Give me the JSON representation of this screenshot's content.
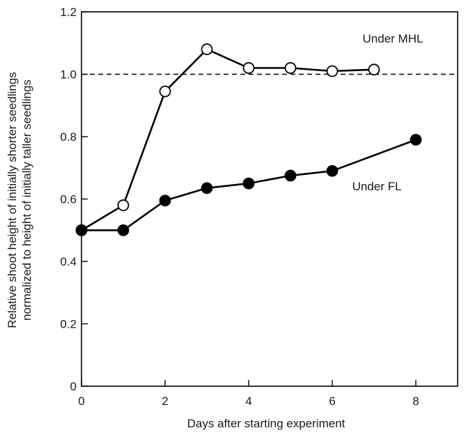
{
  "chart_data": {
    "type": "line",
    "title": "",
    "xlabel": "Days after starting experiment",
    "ylabel_lines": [
      "Relative shoot height of initially shorter seedlings",
      "normalized to height of initially taller seedlings"
    ],
    "xlim": [
      0,
      9
    ],
    "ylim": [
      0,
      1.2
    ],
    "xticks": [
      0,
      2,
      4,
      6,
      8
    ],
    "yticks": [
      0,
      0.2,
      0.4,
      0.6,
      0.8,
      1.0,
      1.2
    ],
    "ytick_labels": [
      "0",
      "0.2",
      "0.4",
      "0.6",
      "0.8",
      "1.0",
      "1.2"
    ],
    "reference_line": {
      "y": 1.0,
      "style": "dashed"
    },
    "grid": false,
    "series": [
      {
        "name": "Under MHL",
        "marker": "open-circle",
        "x": [
          0,
          1,
          2,
          3,
          4,
          5,
          6,
          7
        ],
        "y": [
          0.5,
          0.58,
          0.945,
          1.08,
          1.02,
          1.02,
          1.01,
          1.015
        ]
      },
      {
        "name": "Under FL",
        "marker": "filled-circle",
        "x": [
          0,
          1,
          2,
          3,
          4,
          5,
          6,
          8
        ],
        "y": [
          0.5,
          0.5,
          0.595,
          0.635,
          0.65,
          0.675,
          0.69,
          0.79
        ]
      }
    ],
    "colors": {
      "line": "#000000",
      "open_fill": "#ffffff",
      "filled": "#000000"
    }
  }
}
